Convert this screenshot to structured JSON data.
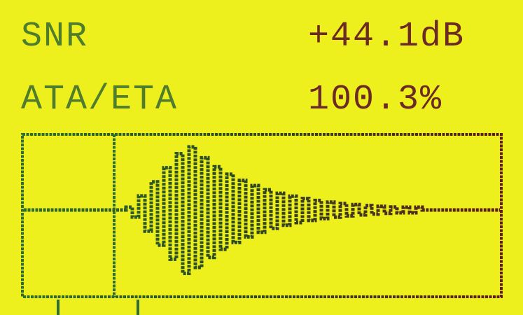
{
  "rows": [
    {
      "label": "SNR",
      "value": "+44.1dB"
    },
    {
      "label": "ATA/ETA",
      "value": "100.3%"
    }
  ]
}
